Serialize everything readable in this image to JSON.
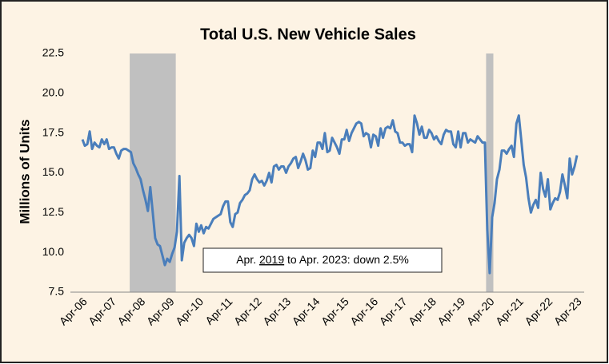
{
  "chart_data": {
    "type": "line",
    "title": "Total U.S. New Vehicle Sales",
    "y_label": "Millions of Units",
    "annotation": {
      "before": "Apr. ",
      "underlined": "2019",
      "after": " to Apr. 2023: down 2.5%"
    },
    "shaded_periods": [
      [
        20,
        38
      ],
      [
        167,
        169
      ]
    ],
    "shade_color": "#c0c0c0",
    "categories": [
      "Apr-06",
      null,
      null,
      null,
      null,
      null,
      null,
      null,
      null,
      null,
      null,
      null,
      "Apr-07",
      null,
      null,
      null,
      null,
      null,
      null,
      null,
      null,
      null,
      null,
      null,
      "Apr-08",
      null,
      null,
      null,
      null,
      null,
      null,
      null,
      null,
      null,
      null,
      null,
      "Apr-09",
      null,
      null,
      null,
      null,
      null,
      null,
      null,
      null,
      null,
      null,
      null,
      "Apr-10",
      null,
      null,
      null,
      null,
      null,
      null,
      null,
      null,
      null,
      null,
      null,
      "Apr-11",
      null,
      null,
      null,
      null,
      null,
      null,
      null,
      null,
      null,
      null,
      null,
      "Apr-12",
      null,
      null,
      null,
      null,
      null,
      null,
      null,
      null,
      null,
      null,
      null,
      "Apr-13",
      null,
      null,
      null,
      null,
      null,
      null,
      null,
      null,
      null,
      null,
      null,
      "Apr-14",
      null,
      null,
      null,
      null,
      null,
      null,
      null,
      null,
      null,
      null,
      null,
      "Apr-15",
      null,
      null,
      null,
      null,
      null,
      null,
      null,
      null,
      null,
      null,
      null,
      "Apr-16",
      null,
      null,
      null,
      null,
      null,
      null,
      null,
      null,
      null,
      null,
      null,
      "Apr-17",
      null,
      null,
      null,
      null,
      null,
      null,
      null,
      null,
      null,
      null,
      null,
      "Apr-18",
      null,
      null,
      null,
      null,
      null,
      null,
      null,
      null,
      null,
      null,
      null,
      "Apr-19",
      null,
      null,
      null,
      null,
      null,
      null,
      null,
      null,
      null,
      null,
      null,
      "Apr-20",
      null,
      null,
      null,
      null,
      null,
      null,
      null,
      null,
      null,
      null,
      null,
      "Apr-21",
      null,
      null,
      null,
      null,
      null,
      null,
      null,
      null,
      null,
      null,
      null,
      "Apr-22",
      null,
      null,
      null,
      null,
      null,
      null,
      null,
      null,
      null,
      null,
      null,
      "Apr-23"
    ],
    "values": [
      17.1,
      16.7,
      16.8,
      17.6,
      16.5,
      16.9,
      16.7,
      16.6,
      17.1,
      16.8,
      17.1,
      16.5,
      16.6,
      16.6,
      16.2,
      15.9,
      16.4,
      16.5,
      16.5,
      16.4,
      16.3,
      15.6,
      15.3,
      14.9,
      14.6,
      13.9,
      13.3,
      12.6,
      14.1,
      12.5,
      10.9,
      10.5,
      10.4,
      9.8,
      9.2,
      9.6,
      9.4,
      9.9,
      10.3,
      11.3,
      14.8,
      9.5,
      10.6,
      10.9,
      11.1,
      10.9,
      10.4,
      11.8,
      11.3,
      11.7,
      11.2,
      11.6,
      11.5,
      11.8,
      12.1,
      12.2,
      12.3,
      12.4,
      12.9,
      13.2,
      13.2,
      11.9,
      11.6,
      12.4,
      12.5,
      13.1,
      13.3,
      13.6,
      13.7,
      13.9,
      14.6,
      14.9,
      14.6,
      14.4,
      14.5,
      14.2,
      14.5,
      15.0,
      14.4,
      15.4,
      15.5,
      15.2,
      15.4,
      15.4,
      15.0,
      15.4,
      15.6,
      15.9,
      16.0,
      15.3,
      15.7,
      16.2,
      15.8,
      15.2,
      15.3,
      16.4,
      16.0,
      16.9,
      16.9,
      16.5,
      17.5,
      16.3,
      16.4,
      17.2,
      16.9,
      16.6,
      16.2,
      17.1,
      17.1,
      17.7,
      17.0,
      17.5,
      17.8,
      18.1,
      18.2,
      18.1,
      17.3,
      17.5,
      17.4,
      16.6,
      17.4,
      17.3,
      16.7,
      17.8,
      17.2,
      17.8,
      17.9,
      17.8,
      18.3,
      17.6,
      17.5,
      16.9,
      16.9,
      16.7,
      16.8,
      16.8,
      16.3,
      18.6,
      18.1,
      17.4,
      17.9,
      17.2,
      17.2,
      17.7,
      17.5,
      17.1,
      17.3,
      17.0,
      16.8,
      17.4,
      17.7,
      17.6,
      17.6,
      16.8,
      16.6,
      17.6,
      16.6,
      17.5,
      17.5,
      16.9,
      17.1,
      17.0,
      16.9,
      17.3,
      17.1,
      16.9,
      16.9,
      11.4,
      8.7,
      12.2,
      13.1,
      14.6,
      15.2,
      16.4,
      16.4,
      16.2,
      16.5,
      16.7,
      16.0,
      18.1,
      18.6,
      17.1,
      15.5,
      14.7,
      13.4,
      12.5,
      13.0,
      13.3,
      12.8,
      15.0,
      14.0,
      13.5,
      14.6,
      12.7,
      13.1,
      13.4,
      13.3,
      13.8,
      14.9,
      14.2,
      13.4,
      15.9,
      14.9,
      15.4,
      16.1
    ],
    "color": "#4a7ebb",
    "ylim": [
      7.5,
      22.5
    ],
    "yticks": [
      7.5,
      {
        "value": 10,
        "label": "10.0"
      },
      12.5,
      {
        "value": 15,
        "label": "15.0"
      },
      17.5,
      {
        "value": 20,
        "label": "20.0"
      },
      22.5
    ],
    "grid": false
  }
}
